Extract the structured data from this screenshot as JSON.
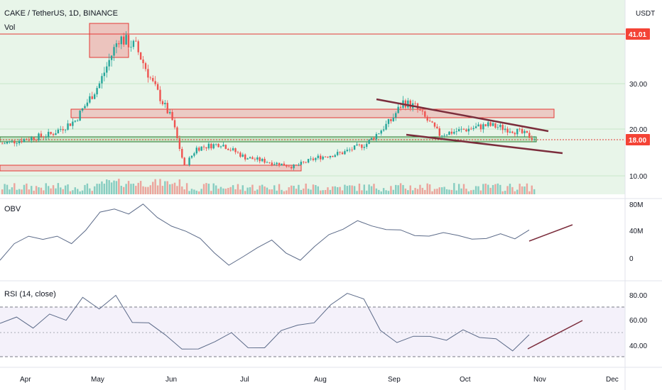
{
  "header": {
    "symbol": "CAKE / TetherUS, 1D, BINANCE",
    "currency": "USDT"
  },
  "panels": {
    "volume_label": "Vol",
    "obv_label": "OBV",
    "rsi_label": "RSI (14, close)"
  },
  "colors": {
    "up": "#26a69a",
    "down": "#ef5350",
    "bg_main": "#e8f5e9",
    "line": "#5b6a88",
    "trend": "#7b2d3c",
    "zone_red": "#ef9a9a",
    "zone_green": "#a5d6a7",
    "price_badge_red": "#f44336",
    "price_badge_green": "#22ab94"
  },
  "chart_data": [
    {
      "type": "candlestick",
      "title": "CAKE / TetherUS, 1D, BINANCE",
      "x_ticks": [
        "Apr",
        "May",
        "Jun",
        "Jul",
        "Aug",
        "Sep",
        "Oct",
        "Nov",
        "Dec"
      ],
      "y_ticks": [
        "30.00",
        "20.00",
        "10.00"
      ],
      "price_labels": [
        "41.01",
        "18.00"
      ],
      "resistance_line": 41.01,
      "current_price": 18.0,
      "approx_close_path": [
        [
          0,
          17
        ],
        [
          10,
          18
        ],
        [
          20,
          19
        ],
        [
          30,
          22
        ],
        [
          40,
          30
        ],
        [
          48,
          40
        ],
        [
          55,
          38
        ],
        [
          62,
          30
        ],
        [
          70,
          22
        ],
        [
          75,
          12
        ],
        [
          80,
          16
        ],
        [
          90,
          17
        ],
        [
          100,
          14
        ],
        [
          110,
          13
        ],
        [
          120,
          12
        ],
        [
          130,
          14
        ],
        [
          140,
          15
        ],
        [
          150,
          17
        ],
        [
          160,
          22
        ],
        [
          165,
          26
        ],
        [
          170,
          25
        ],
        [
          180,
          19
        ],
        [
          190,
          20
        ],
        [
          200,
          21
        ],
        [
          210,
          20
        ],
        [
          220,
          18
        ]
      ]
    },
    {
      "type": "line",
      "name": "OBV",
      "y_ticks": [
        "80M",
        "40M",
        "0"
      ],
      "values_m": [
        -5,
        20,
        30,
        25,
        35,
        20,
        40,
        70,
        75,
        65,
        80,
        60,
        45,
        40,
        30,
        10,
        -10,
        5,
        15,
        25,
        5,
        -5,
        20,
        35,
        45,
        55,
        50,
        45,
        40,
        35,
        30,
        40,
        35,
        30,
        32,
        35,
        30,
        40
      ]
    },
    {
      "type": "line",
      "name": "RSI (14, close)",
      "y_ticks": [
        "80.00",
        "60.00",
        "40.00"
      ],
      "values": [
        55,
        62,
        50,
        68,
        60,
        75,
        65,
        80,
        62,
        55,
        45,
        35,
        40,
        45,
        50,
        40,
        35,
        50,
        55,
        60,
        70,
        80,
        75,
        55,
        40,
        45,
        50,
        45,
        50,
        48,
        42,
        38,
        45
      ]
    }
  ]
}
